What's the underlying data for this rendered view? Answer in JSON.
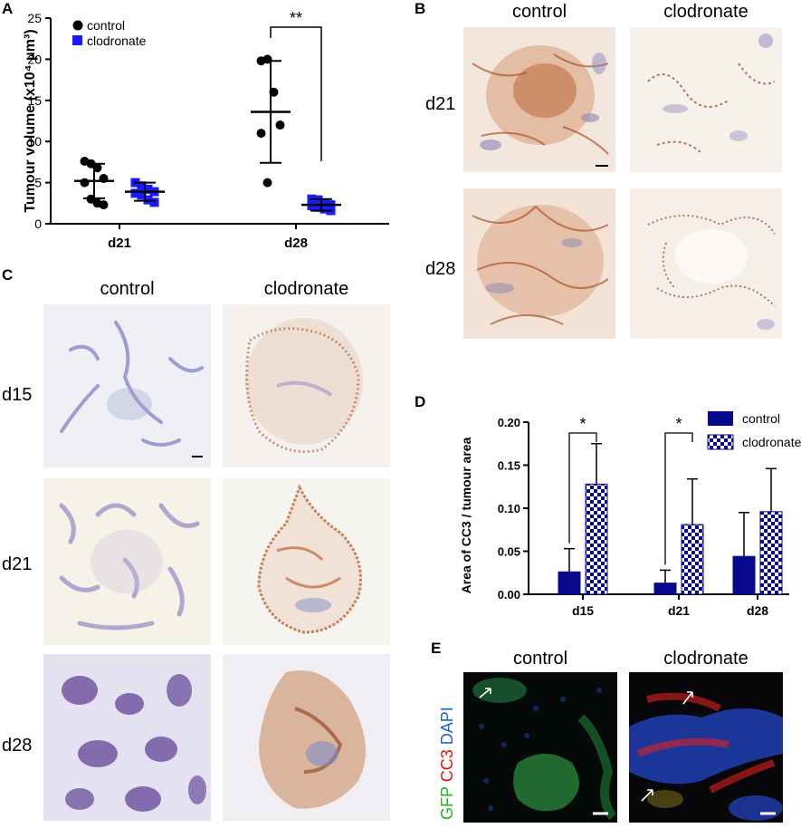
{
  "panel_letters": {
    "a": "A",
    "b": "B",
    "c": "C",
    "d": "D",
    "e": "E"
  },
  "colors": {
    "control": "#000000",
    "clodronate": "#1a1aff",
    "bar_control": "#08088c",
    "dab_brown": "#b0541e",
    "hematoxylin": "#6e64b4"
  },
  "panel_b": {
    "col_labels": [
      "control",
      "clodronate"
    ],
    "row_labels": [
      "d21",
      "d28"
    ]
  },
  "panel_c": {
    "col_labels": [
      "control",
      "clodronate"
    ],
    "row_labels": [
      "d15",
      "d21",
      "d28"
    ]
  },
  "panel_e": {
    "col_labels": [
      "control",
      "clodronate"
    ],
    "stain_labels": [
      "GFP",
      "CC3",
      "DAPI"
    ]
  },
  "chart_data": [
    {
      "type": "scatter",
      "panel": "A",
      "ylabel": "Tumour volume (x10⁴ μm³)",
      "categories": [
        "d21",
        "d28"
      ],
      "ylim": [
        0,
        25
      ],
      "yticks": [
        "0",
        "5",
        "10",
        "15",
        "20",
        "25"
      ],
      "legend": "top-left",
      "significance": "**",
      "series": [
        {
          "name": "control",
          "points": {
            "d21": [
              7.6,
              7.3,
              6.8,
              5.5,
              5.0,
              3.0,
              2.5,
              2.3
            ],
            "d28": [
              19.8,
              20.0,
              16.0,
              12.0,
              11.0,
              5.0
            ]
          },
          "mean": {
            "d21": 5.2,
            "d28": 13.6
          },
          "sd": {
            "d21": 2.1,
            "d28": 6.2
          }
        },
        {
          "name": "clodronate",
          "points": {
            "d21": [
              5.0,
              4.6,
              4.2,
              3.9,
              3.7,
              3.5,
              2.9,
              2.6
            ],
            "d28": [
              3.0,
              2.9,
              2.5,
              2.3,
              2.2,
              2.0,
              1.8,
              1.6
            ]
          },
          "mean": {
            "d21": 3.9,
            "d28": 2.3
          },
          "sd": {
            "d21": 1.1,
            "d28": 0.7
          }
        }
      ]
    },
    {
      "type": "bar",
      "panel": "D",
      "ylabel": "Area of CC3 / tumour area",
      "categories": [
        "d15",
        "d21",
        "d28"
      ],
      "ylim": [
        0,
        0.2
      ],
      "yticks": [
        "0.00",
        "0.05",
        "0.10",
        "0.15",
        "0.20"
      ],
      "legend": "top-right",
      "significance": [
        "*",
        "*",
        ""
      ],
      "series": [
        {
          "name": "control",
          "values": [
            0.026,
            0.013,
            0.044
          ],
          "error": [
            0.027,
            0.015,
            0.051
          ]
        },
        {
          "name": "clodronate",
          "values": [
            0.128,
            0.081,
            0.096
          ],
          "error": [
            0.047,
            0.053,
            0.05
          ]
        }
      ]
    }
  ]
}
